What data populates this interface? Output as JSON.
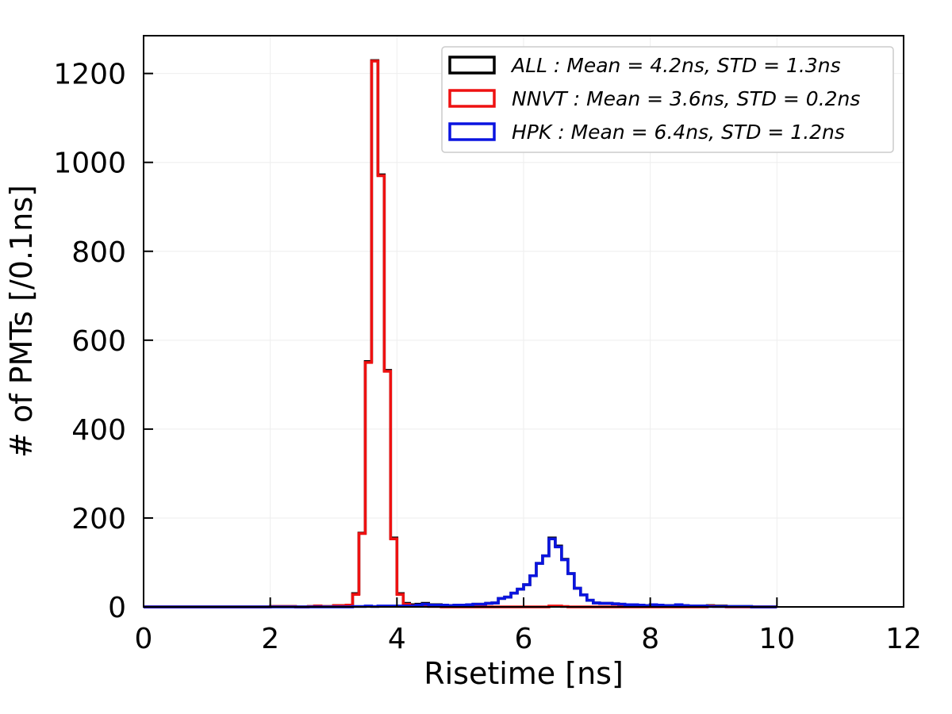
{
  "chart_data": {
    "type": "histogram",
    "title": "",
    "xlabel": "Risetime [ns]",
    "ylabel": "# of PMTs [/0.1ns]",
    "xlim": [
      0,
      12
    ],
    "ylim": [
      0,
      1285
    ],
    "xticks": [
      0,
      2,
      4,
      6,
      8,
      10,
      12
    ],
    "yticks": [
      0,
      200,
      400,
      600,
      800,
      1000,
      1200
    ],
    "grid": true,
    "legend_position": "top-right",
    "bin_width": 0.1,
    "series": [
      {
        "name": "ALL",
        "legend_label": "ALL : Mean = 4.2ns, STD = 1.3ns",
        "color": "#000000",
        "x_start": 0,
        "x_end": 10,
        "values": [
          0,
          0,
          0,
          0,
          0,
          0,
          0,
          0,
          0,
          0,
          0,
          0,
          0,
          0,
          0,
          0,
          0,
          0,
          0,
          0,
          1,
          1,
          1,
          1,
          0,
          0,
          1,
          2,
          1,
          1,
          3,
          3,
          4,
          30,
          166,
          552,
          1229,
          972,
          532,
          155,
          30,
          8,
          5,
          6,
          8,
          5,
          5,
          4,
          3,
          4,
          4,
          5,
          6,
          6,
          8,
          9,
          19,
          22,
          31,
          40,
          50,
          70,
          98,
          115,
          155,
          137,
          107,
          75,
          42,
          27,
          15,
          9,
          8,
          8,
          7,
          6,
          5,
          5,
          4,
          3,
          5,
          4,
          3,
          3,
          5,
          3,
          2,
          2,
          2,
          3,
          2,
          2,
          1,
          1,
          1,
          1,
          0,
          0,
          0,
          0
        ]
      },
      {
        "name": "NNVT",
        "legend_label": "NNVT : Mean = 3.6ns, STD = 0.2ns",
        "color": "#ee1111",
        "x_start": 0,
        "x_end": 10,
        "values": [
          0,
          0,
          0,
          0,
          0,
          0,
          0,
          0,
          0,
          0,
          0,
          0,
          0,
          0,
          0,
          0,
          0,
          0,
          0,
          0,
          1,
          1,
          1,
          1,
          0,
          0,
          1,
          2,
          1,
          1,
          3,
          3,
          4,
          28,
          165,
          550,
          1228,
          970,
          530,
          153,
          28,
          6,
          3,
          2,
          2,
          1,
          1,
          0,
          0,
          0,
          0,
          0,
          0,
          0,
          0,
          0,
          0,
          0,
          0,
          0,
          0,
          0,
          0,
          0,
          2,
          2,
          1,
          0,
          0,
          0,
          0,
          0,
          0,
          0,
          0,
          0,
          0,
          0,
          0,
          0,
          0,
          0,
          0,
          0,
          0,
          0,
          0,
          0,
          0,
          2,
          1,
          1,
          0,
          0,
          0,
          0,
          0,
          0,
          0,
          0
        ]
      },
      {
        "name": "HPK",
        "legend_label": "HPK : Mean = 6.4ns, STD = 1.2ns",
        "color": "#0a14e0",
        "x_start": 0,
        "x_end": 10,
        "values": [
          0,
          0,
          0,
          0,
          0,
          0,
          0,
          0,
          0,
          0,
          0,
          0,
          0,
          0,
          0,
          0,
          0,
          0,
          0,
          0,
          0,
          0,
          0,
          0,
          0,
          0,
          0,
          0,
          0,
          0,
          0,
          0,
          0,
          1,
          1,
          2,
          1,
          2,
          2,
          2,
          2,
          2,
          2,
          4,
          6,
          4,
          4,
          4,
          3,
          4,
          4,
          5,
          6,
          6,
          8,
          9,
          19,
          22,
          31,
          40,
          50,
          70,
          98,
          115,
          153,
          135,
          106,
          75,
          42,
          27,
          15,
          9,
          8,
          8,
          7,
          6,
          5,
          5,
          4,
          3,
          5,
          4,
          3,
          3,
          5,
          3,
          2,
          2,
          2,
          1,
          1,
          1,
          1,
          1,
          1,
          1,
          0,
          0,
          0,
          0
        ]
      }
    ]
  }
}
